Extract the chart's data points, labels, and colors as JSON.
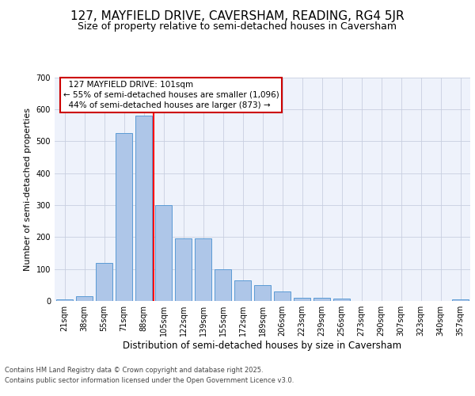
{
  "title": "127, MAYFIELD DRIVE, CAVERSHAM, READING, RG4 5JR",
  "subtitle": "Size of property relative to semi-detached houses in Caversham",
  "xlabel": "Distribution of semi-detached houses by size in Caversham",
  "ylabel": "Number of semi-detached properties",
  "categories": [
    "21sqm",
    "38sqm",
    "55sqm",
    "71sqm",
    "88sqm",
    "105sqm",
    "122sqm",
    "139sqm",
    "155sqm",
    "172sqm",
    "189sqm",
    "206sqm",
    "223sqm",
    "239sqm",
    "256sqm",
    "273sqm",
    "290sqm",
    "307sqm",
    "323sqm",
    "340sqm",
    "357sqm"
  ],
  "values": [
    5,
    15,
    120,
    525,
    580,
    300,
    195,
    195,
    100,
    65,
    50,
    30,
    10,
    10,
    8,
    0,
    0,
    0,
    0,
    0,
    5
  ],
  "bar_color": "#aec6e8",
  "bar_edge_color": "#5b9bd5",
  "property_line_label": "127 MAYFIELD DRIVE: 101sqm",
  "pct_smaller": "55%",
  "n_smaller": "1,096",
  "pct_larger": "44%",
  "n_larger": "873",
  "annotation_box_color": "#cc0000",
  "ylim": [
    0,
    700
  ],
  "yticks": [
    0,
    100,
    200,
    300,
    400,
    500,
    600,
    700
  ],
  "background_color": "#eef2fb",
  "grid_color": "#c8cfe0",
  "footer_line1": "Contains HM Land Registry data © Crown copyright and database right 2025.",
  "footer_line2": "Contains public sector information licensed under the Open Government Licence v3.0.",
  "title_fontsize": 11,
  "subtitle_fontsize": 9,
  "ylabel_fontsize": 8,
  "xlabel_fontsize": 8.5,
  "tick_fontsize": 7,
  "annotation_fontsize": 7.5,
  "footer_fontsize": 6
}
